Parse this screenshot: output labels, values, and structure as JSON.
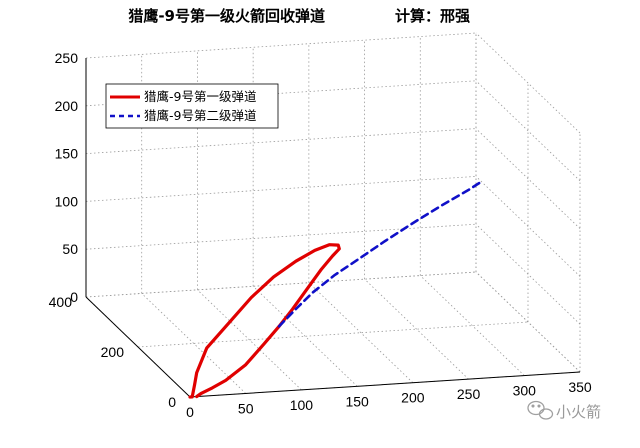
{
  "chart_data": {
    "type": "line3d",
    "title": "猎鹰-9号第一级火箭回收弹道",
    "title_right": "计算：邢强",
    "xlabel": "",
    "ylabel": "",
    "zlabel": "",
    "xlim": [
      0,
      350
    ],
    "ylim": [
      0,
      400
    ],
    "zlim": [
      0,
      250
    ],
    "x_ticks": [
      "0",
      "50",
      "100",
      "150",
      "200",
      "250",
      "300",
      "350"
    ],
    "y_ticks": [
      "0",
      "200",
      "400"
    ],
    "z_ticks": [
      "0",
      "50",
      "100",
      "150",
      "200",
      "250"
    ],
    "grid": true,
    "legend_position": "top-left",
    "series": [
      {
        "name": "猎鹰-9号第一级弹道",
        "color": "#e00000",
        "style": "solid",
        "points": [
          [
            0,
            0,
            0
          ],
          [
            2,
            0,
            0
          ],
          [
            4,
            0,
            12
          ],
          [
            6,
            0,
            25
          ],
          [
            15,
            0,
            50
          ],
          [
            35,
            0,
            75
          ],
          [
            55,
            0,
            100
          ],
          [
            75,
            0,
            120
          ],
          [
            95,
            0,
            135
          ],
          [
            112,
            0,
            145
          ],
          [
            125,
            0,
            150
          ],
          [
            133,
            0,
            149
          ],
          [
            134,
            0,
            145
          ],
          [
            128,
            0,
            138
          ],
          [
            118,
            0,
            125
          ],
          [
            105,
            0,
            105
          ],
          [
            92,
            0,
            85
          ],
          [
            80,
            0,
            68
          ],
          [
            66,
            0,
            50
          ],
          [
            50,
            0,
            30
          ],
          [
            32,
            0,
            15
          ],
          [
            20,
            0,
            8
          ],
          [
            10,
            0,
            3
          ],
          [
            6,
            0,
            0
          ]
        ]
      },
      {
        "name": "猎鹰-9号第二级弹道",
        "color": "#1010c8",
        "style": "dashed",
        "points": [
          [
            80,
            0,
            68
          ],
          [
            95,
            0,
            85
          ],
          [
            110,
            0,
            101
          ],
          [
            130,
            0,
            118
          ],
          [
            150,
            0,
            132
          ],
          [
            175,
            0,
            150
          ],
          [
            200,
            0,
            167
          ],
          [
            225,
            0,
            183
          ],
          [
            250,
            0,
            198
          ],
          [
            262,
            0,
            206
          ]
        ]
      }
    ]
  },
  "watermark": {
    "icon": "wechat-icon",
    "text": "小火箭"
  }
}
